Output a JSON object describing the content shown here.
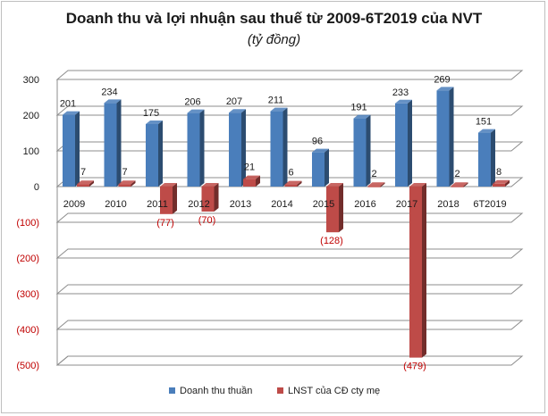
{
  "chart_data": {
    "type": "bar",
    "title": "Doanh thu và lợi nhuận sau thuế từ 2009-6T2019 của NVT",
    "subtitle": "(tỷ đồng)",
    "categories": [
      "2009",
      "2010",
      "2011",
      "2012",
      "2013",
      "2014",
      "2015",
      "2016",
      "2017",
      "2018",
      "6T2019"
    ],
    "series": [
      {
        "name": "Doanh thu thuần",
        "color": "#4a7ebb",
        "values": [
          201,
          234,
          175,
          206,
          207,
          211,
          96,
          191,
          233,
          269,
          151
        ],
        "labels": [
          "201",
          "234",
          "175",
          "206",
          "207",
          "211",
          "96",
          "191",
          "233",
          "269",
          "151"
        ]
      },
      {
        "name": "LNST  của CĐ cty mẹ",
        "color": "#be4b48",
        "values": [
          7,
          7,
          -77,
          -70,
          21,
          6,
          -128,
          2,
          -479,
          2,
          8
        ],
        "labels": [
          "7",
          "7",
          "(77)",
          "(70)",
          "21",
          "6",
          "(128)",
          "2",
          "(479)",
          "2",
          "8"
        ]
      }
    ],
    "yticks": [
      300,
      200,
      100,
      0,
      -100,
      -200,
      -300,
      -400,
      -500
    ],
    "ytick_labels": [
      "300",
      "200",
      "100",
      "0",
      "(100)",
      "(200)",
      "(300)",
      "(400)",
      "(500)"
    ],
    "ylim": [
      -500,
      300
    ],
    "xlabel": "",
    "ylabel": "",
    "grid": true,
    "legend_position": "bottom",
    "colors": {
      "negative_label": "#c00000",
      "positive_label": "#1a1a1a",
      "gridline": "#8c8c8c"
    }
  }
}
